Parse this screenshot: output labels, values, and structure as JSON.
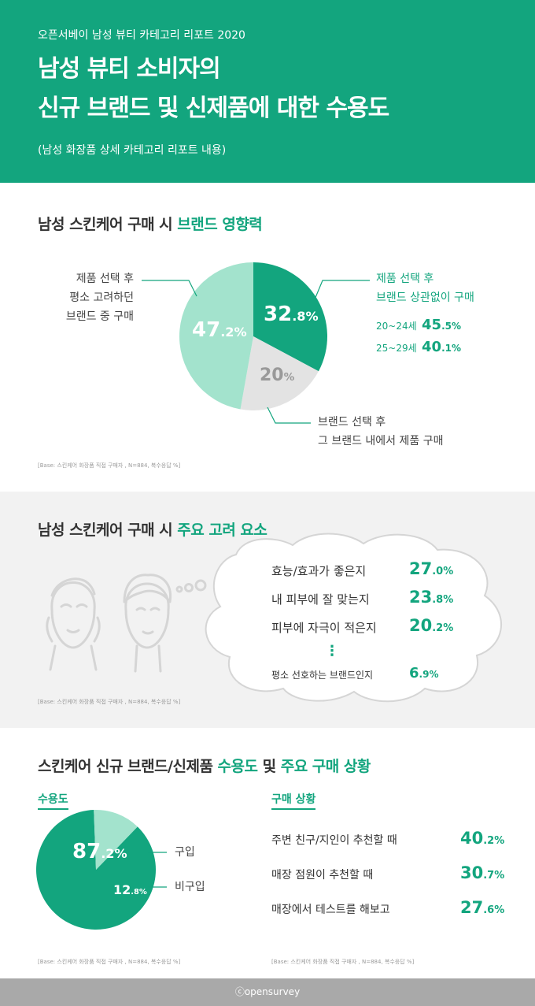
{
  "header": {
    "subtitle": "오픈서베이 남성 뷰티 카테고리 리포트 2020",
    "title_line1": "남성 뷰티 소비자의",
    "title_line2": "신규 브랜드 및 신제품에 대한 수용도",
    "description": "(남성 화장품 상세 카테고리 리포트 내용)"
  },
  "section1": {
    "title_prefix": "남성 스킨케어 구매 시 ",
    "title_highlight": "브랜드 영향력",
    "left_label": [
      "제품 선택 후",
      "평소 고려하던",
      "브랜드 중 구매"
    ],
    "right_label": [
      "제품 선택 후",
      "브랜드 상관없이 구매"
    ],
    "age_rows": [
      {
        "label": "20~24세",
        "value_main": "45",
        "value_dec": ".5%"
      },
      {
        "label": "25~29세",
        "value_main": "40",
        "value_dec": ".1%"
      }
    ],
    "bottom_label": [
      "브랜드 선택 후",
      "그 브랜드 내에서 제품 구매"
    ],
    "pie_labels": [
      {
        "main": "32",
        "dec": ".8%"
      },
      {
        "main": "20",
        "dec": "%"
      },
      {
        "main": "47",
        "dec": ".2%"
      }
    ],
    "base": "[Base: 스킨케어 화장품 직접 구매자 , N=884, 복수응답 %]"
  },
  "section2": {
    "title_prefix": "남성 스킨케어 구매 시 ",
    "title_highlight": "주요 고려 요소",
    "factors": [
      {
        "label": "효능/효과가 좋은지",
        "main": "27",
        "dec": ".0%"
      },
      {
        "label": "내 피부에 잘 맞는지",
        "main": "23",
        "dec": ".8%"
      },
      {
        "label": "피부에 자극이 적은지",
        "main": "20",
        "dec": ".2%"
      },
      {
        "label": "평소 선호하는 브랜드인지",
        "main": "6",
        "dec": ".9%"
      }
    ],
    "ellipsis": "⋮",
    "base": "[Base: 스킨케어 화장품 직접 구매자 , N=884, 복수응답 %]"
  },
  "section3": {
    "title_prefix": "스킨케어 신규 브랜드/신제품 ",
    "title_h1": "수용도",
    "title_mid": " 및 ",
    "title_h2": "주요 구매 상황",
    "acceptance_label": "수용도",
    "situation_label": "구매 상황",
    "pie_labels": [
      {
        "main": "87",
        "dec": ".2%"
      },
      {
        "main": "12",
        "dec": ".8%"
      }
    ],
    "legend_buy": "구입",
    "legend_nobuy": "비구입",
    "situations": [
      {
        "label": "주변 친구/지인이 추천할 때",
        "main": "40",
        "dec": ".2%"
      },
      {
        "label": "매장 점원이 추천할 때",
        "main": "30",
        "dec": ".7%"
      },
      {
        "label": "매장에서 테스트를 해보고",
        "main": "27",
        "dec": ".6%"
      }
    ],
    "base_left": "[Base: 스킨케어 화장품 직접 구매자 , N=884, 복수응답 %]",
    "base_right": "[Base: 스킨케어 화장품 직접 구매자 , N=884, 복수응답 %]"
  },
  "footer": {
    "logo_symbol": "ⓒ",
    "logo_text": "opensurvey"
  },
  "chart_data": [
    {
      "type": "pie",
      "categories": [
        "제품 선택 후 브랜드 상관없이 구매",
        "브랜드 선택 후 그 브랜드 내에서 제품 구매",
        "제품 선택 후 평소 고려하던 브랜드 중 구매"
      ],
      "values": [
        32.8,
        20,
        47.2
      ],
      "colors": [
        "#13a57e",
        "#e3e3e3",
        "#a3e3cd"
      ],
      "title": "남성 스킨케어 구매 시 브랜드 영향력"
    },
    {
      "type": "bar",
      "categories": [
        "효능/효과가 좋은지",
        "내 피부에 잘 맞는지",
        "피부에 자극이 적은지",
        "평소 선호하는 브랜드인지"
      ],
      "values": [
        27.0,
        23.8,
        20.2,
        6.9
      ],
      "title": "남성 스킨케어 구매 시 주요 고려 요소"
    },
    {
      "type": "pie",
      "categories": [
        "구입",
        "비구입"
      ],
      "values": [
        87.2,
        12.8
      ],
      "colors": [
        "#13a57e",
        "#a3e3cd"
      ],
      "title": "수용도"
    },
    {
      "type": "bar",
      "categories": [
        "주변 친구/지인이 추천할 때",
        "매장 점원이 추천할 때",
        "매장에서 테스트를 해보고"
      ],
      "values": [
        40.2,
        30.7,
        27.6
      ],
      "title": "구매 상황"
    }
  ]
}
